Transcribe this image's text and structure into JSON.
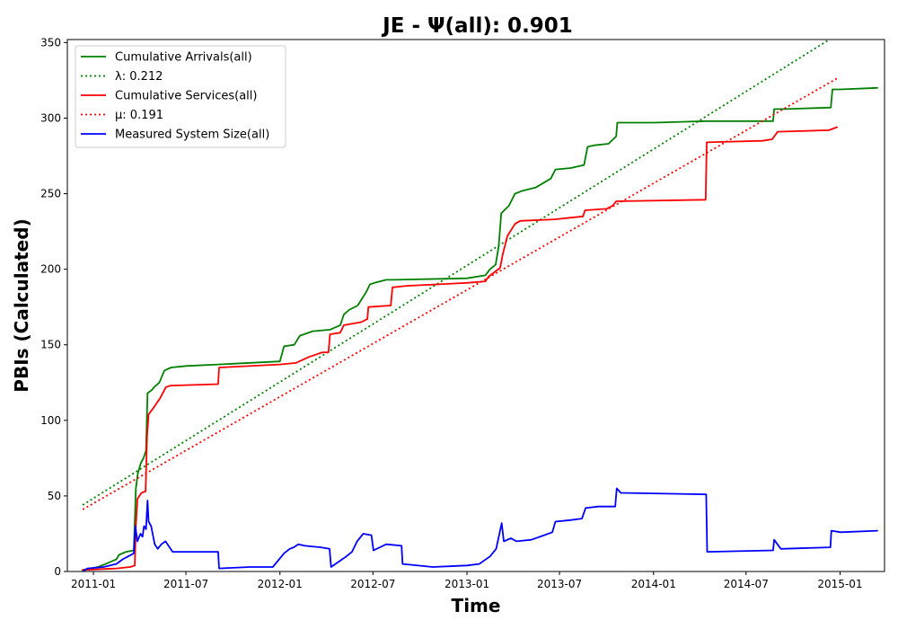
{
  "chart_data": {
    "type": "line",
    "title": "JE -  Ψ(all): 0.901",
    "xlabel": "Time",
    "ylabel": "PBIs (Calculated)",
    "xlim": [
      "2010-11-11",
      "2015-03-29"
    ],
    "ylim": [
      0,
      352
    ],
    "x_ticks": [
      {
        "date": "2011-01-01",
        "label": "2011-01"
      },
      {
        "date": "2011-07-01",
        "label": "2011-07"
      },
      {
        "date": "2012-01-01",
        "label": "2012-01"
      },
      {
        "date": "2012-07-01",
        "label": "2012-07"
      },
      {
        "date": "2013-01-01",
        "label": "2013-01"
      },
      {
        "date": "2013-07-01",
        "label": "2013-07"
      },
      {
        "date": "2014-01-01",
        "label": "2014-01"
      },
      {
        "date": "2014-07-01",
        "label": "2014-07"
      },
      {
        "date": "2015-01-01",
        "label": "2015-01"
      }
    ],
    "y_ticks": [
      0,
      50,
      100,
      150,
      200,
      250,
      300,
      350
    ],
    "grid": false,
    "legend_position": "top-left",
    "series": [
      {
        "name": "Cumulative Arrivals(all)",
        "style": "solid",
        "color": "#008000",
        "points": [
          [
            "2010-12-11",
            1
          ],
          [
            "2011-01-10",
            3
          ],
          [
            "2011-01-25",
            5
          ],
          [
            "2011-02-15",
            8
          ],
          [
            "2011-02-20",
            11
          ],
          [
            "2011-03-06",
            13
          ],
          [
            "2011-03-21",
            14
          ],
          [
            "2011-03-25",
            55
          ],
          [
            "2011-03-29",
            65
          ],
          [
            "2011-04-04",
            72
          ],
          [
            "2011-04-09",
            75
          ],
          [
            "2011-04-14",
            80
          ],
          [
            "2011-04-17",
            118
          ],
          [
            "2011-04-25",
            120
          ],
          [
            "2011-04-30",
            122
          ],
          [
            "2011-05-10",
            125
          ],
          [
            "2011-05-20",
            133
          ],
          [
            "2011-06-02",
            135
          ],
          [
            "2011-07-01",
            136
          ],
          [
            "2011-09-02",
            137
          ],
          [
            "2012-01-01",
            139
          ],
          [
            "2012-01-09",
            149
          ],
          [
            "2012-01-29",
            150
          ],
          [
            "2012-02-09",
            156
          ],
          [
            "2012-03-05",
            159
          ],
          [
            "2012-04-08",
            160
          ],
          [
            "2012-04-28",
            163
          ],
          [
            "2012-05-05",
            170
          ],
          [
            "2012-05-15",
            173
          ],
          [
            "2012-06-01",
            176
          ],
          [
            "2012-06-18",
            185
          ],
          [
            "2012-06-25",
            190
          ],
          [
            "2012-07-04",
            191
          ],
          [
            "2012-07-27",
            193
          ],
          [
            "2012-08-12",
            193
          ],
          [
            "2013-01-01",
            194
          ],
          [
            "2013-02-06",
            196
          ],
          [
            "2013-02-15",
            200
          ],
          [
            "2013-02-26",
            203
          ],
          [
            "2013-03-04",
            215
          ],
          [
            "2013-03-09",
            237
          ],
          [
            "2013-03-24",
            242
          ],
          [
            "2013-04-05",
            250
          ],
          [
            "2013-04-20",
            252
          ],
          [
            "2013-05-15",
            254
          ],
          [
            "2013-05-30",
            257
          ],
          [
            "2013-06-14",
            260
          ],
          [
            "2013-06-23",
            266
          ],
          [
            "2013-07-23",
            267
          ],
          [
            "2013-08-18",
            269
          ],
          [
            "2013-08-25",
            281
          ],
          [
            "2013-09-07",
            282
          ],
          [
            "2013-10-05",
            283
          ],
          [
            "2013-10-20",
            288
          ],
          [
            "2013-10-22",
            297
          ],
          [
            "2014-01-01",
            297
          ],
          [
            "2014-04-15",
            298
          ],
          [
            "2014-08-23",
            298
          ],
          [
            "2014-08-25",
            306
          ],
          [
            "2014-09-15",
            306
          ],
          [
            "2014-12-14",
            307
          ],
          [
            "2014-12-17",
            319
          ],
          [
            "2015-01-01",
            319
          ],
          [
            "2015-03-15",
            320
          ]
        ]
      },
      {
        "name": "λ: 0.212",
        "style": "dotted",
        "color": "#008000",
        "points": [
          [
            "2010-12-11",
            44
          ],
          [
            "2014-12-30",
            356
          ]
        ]
      },
      {
        "name": "Cumulative Services(all)",
        "style": "solid",
        "color": "#ff0000",
        "points": [
          [
            "2010-12-11",
            1
          ],
          [
            "2011-02-15",
            2
          ],
          [
            "2011-03-14",
            3
          ],
          [
            "2011-03-23",
            4
          ],
          [
            "2011-03-25",
            30
          ],
          [
            "2011-03-28",
            48
          ],
          [
            "2011-04-05",
            52
          ],
          [
            "2011-04-13",
            53
          ],
          [
            "2011-04-16",
            90
          ],
          [
            "2011-04-19",
            104
          ],
          [
            "2011-04-28",
            108
          ],
          [
            "2011-05-12",
            115
          ],
          [
            "2011-05-23",
            122
          ],
          [
            "2011-06-01",
            123
          ],
          [
            "2011-09-02",
            124
          ],
          [
            "2011-09-04",
            135
          ],
          [
            "2012-01-01",
            137
          ],
          [
            "2012-02-01",
            138
          ],
          [
            "2012-02-27",
            142
          ],
          [
            "2012-03-24",
            145
          ],
          [
            "2012-04-05",
            145
          ],
          [
            "2012-04-08",
            157
          ],
          [
            "2012-04-28",
            158
          ],
          [
            "2012-05-05",
            163
          ],
          [
            "2012-06-08",
            165
          ],
          [
            "2012-06-20",
            167
          ],
          [
            "2012-06-22",
            175
          ],
          [
            "2012-08-05",
            176
          ],
          [
            "2012-08-08",
            188
          ],
          [
            "2012-09-05",
            189
          ],
          [
            "2013-01-01",
            191
          ],
          [
            "2013-02-06",
            192
          ],
          [
            "2013-02-12",
            195
          ],
          [
            "2013-03-07",
            201
          ],
          [
            "2013-03-12",
            210
          ],
          [
            "2013-03-21",
            222
          ],
          [
            "2013-04-05",
            230
          ],
          [
            "2013-04-15",
            232
          ],
          [
            "2013-06-22",
            233
          ],
          [
            "2013-08-16",
            235
          ],
          [
            "2013-08-20",
            239
          ],
          [
            "2013-10-01",
            240
          ],
          [
            "2013-10-13",
            242
          ],
          [
            "2013-10-20",
            245
          ],
          [
            "2014-04-13",
            246
          ],
          [
            "2014-04-15",
            284
          ],
          [
            "2014-08-02",
            285
          ],
          [
            "2014-08-21",
            286
          ],
          [
            "2014-09-01",
            291
          ],
          [
            "2014-12-10",
            292
          ],
          [
            "2014-12-26",
            294
          ]
        ]
      },
      {
        "name": "μ: 0.191",
        "style": "dotted",
        "color": "#ff0000",
        "points": [
          [
            "2010-12-11",
            41
          ],
          [
            "2014-12-30",
            327
          ]
        ]
      },
      {
        "name": "Measured System Size(all)",
        "style": "solid",
        "color": "#0000ff",
        "points": [
          [
            "2010-12-11",
            0
          ],
          [
            "2010-12-20",
            2
          ],
          [
            "2011-01-21",
            3
          ],
          [
            "2011-02-15",
            5
          ],
          [
            "2011-02-27",
            8
          ],
          [
            "2011-03-10",
            10
          ],
          [
            "2011-03-21",
            12
          ],
          [
            "2011-03-24",
            30
          ],
          [
            "2011-03-28",
            20
          ],
          [
            "2011-04-03",
            25
          ],
          [
            "2011-04-07",
            23
          ],
          [
            "2011-04-10",
            30
          ],
          [
            "2011-04-14",
            28
          ],
          [
            "2011-04-17",
            47
          ],
          [
            "2011-04-19",
            33
          ],
          [
            "2011-04-24",
            30
          ],
          [
            "2011-05-01",
            18
          ],
          [
            "2011-05-07",
            15
          ],
          [
            "2011-05-14",
            18
          ],
          [
            "2011-05-22",
            20
          ],
          [
            "2011-06-05",
            13
          ],
          [
            "2011-09-02",
            13
          ],
          [
            "2011-09-04",
            2
          ],
          [
            "2011-11-03",
            3
          ],
          [
            "2011-12-18",
            3
          ],
          [
            "2012-01-09",
            12
          ],
          [
            "2012-01-20",
            15
          ],
          [
            "2012-01-28",
            16
          ],
          [
            "2012-02-06",
            18
          ],
          [
            "2012-02-19",
            17
          ],
          [
            "2012-03-21",
            16
          ],
          [
            "2012-04-07",
            15
          ],
          [
            "2012-04-10",
            3
          ],
          [
            "2012-05-10",
            10
          ],
          [
            "2012-05-21",
            13
          ],
          [
            "2012-05-31",
            20
          ],
          [
            "2012-06-12",
            25
          ],
          [
            "2012-06-28",
            24
          ],
          [
            "2012-07-02",
            14
          ],
          [
            "2012-07-27",
            18
          ],
          [
            "2012-08-26",
            17
          ],
          [
            "2012-08-28",
            5
          ],
          [
            "2012-10-26",
            3
          ],
          [
            "2013-01-01",
            4
          ],
          [
            "2013-01-25",
            5
          ],
          [
            "2013-02-15",
            10
          ],
          [
            "2013-02-27",
            15
          ],
          [
            "2013-03-10",
            32
          ],
          [
            "2013-03-14",
            20
          ],
          [
            "2013-03-28",
            22
          ],
          [
            "2013-04-08",
            20
          ],
          [
            "2013-05-07",
            21
          ],
          [
            "2013-06-01",
            24
          ],
          [
            "2013-06-17",
            26
          ],
          [
            "2013-06-23",
            33
          ],
          [
            "2013-07-22",
            34
          ],
          [
            "2013-08-14",
            35
          ],
          [
            "2013-08-21",
            42
          ],
          [
            "2013-09-15",
            43
          ],
          [
            "2013-10-18",
            43
          ],
          [
            "2013-10-21",
            55
          ],
          [
            "2013-10-29",
            52
          ],
          [
            "2014-04-14",
            51
          ],
          [
            "2014-04-16",
            13
          ],
          [
            "2014-08-23",
            14
          ],
          [
            "2014-08-25",
            21
          ],
          [
            "2014-09-07",
            15
          ],
          [
            "2014-12-13",
            16
          ],
          [
            "2014-12-15",
            27
          ],
          [
            "2015-01-02",
            26
          ],
          [
            "2015-03-15",
            27
          ]
        ]
      }
    ]
  },
  "legend": {
    "items": [
      {
        "label": "Cumulative Arrivals(all)",
        "color": "#008000",
        "style": "solid"
      },
      {
        "label": "λ: 0.212",
        "color": "#008000",
        "style": "dotted"
      },
      {
        "label": "Cumulative Services(all)",
        "color": "#ff0000",
        "style": "solid"
      },
      {
        "label": "μ: 0.191",
        "color": "#ff0000",
        "style": "dotted"
      },
      {
        "label": "Measured System Size(all)",
        "color": "#0000ff",
        "style": "solid"
      }
    ]
  }
}
